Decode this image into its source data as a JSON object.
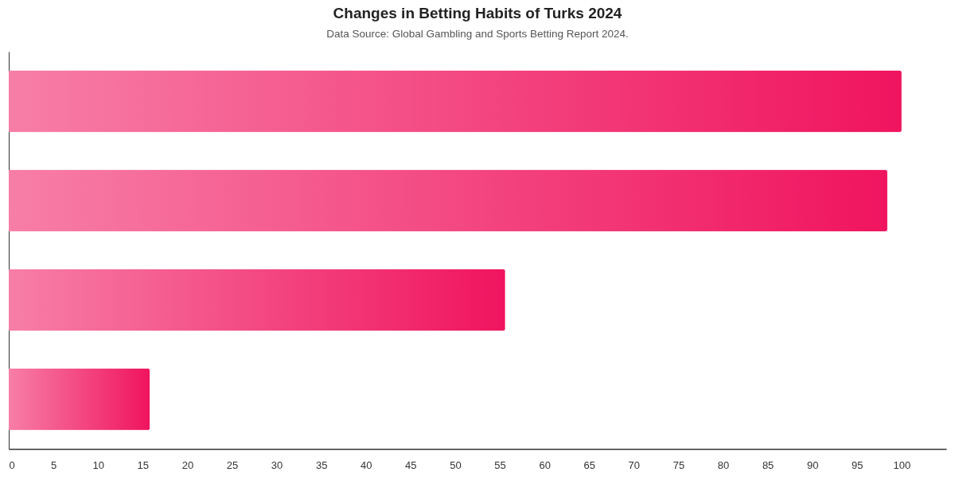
{
  "chart_data": {
    "type": "bar",
    "orientation": "horizontal",
    "title": "Changes in Betting Habits of Turks 2024",
    "subtitle": "Data Source: Global Gambling and Sports Betting Report 2024.",
    "categories": [
      null,
      null,
      null,
      null
    ],
    "values": [
      100,
      98.4,
      55.6,
      15.8
    ],
    "color": "#f0145f",
    "xlim": [
      0,
      105
    ],
    "xticks": [
      0,
      5,
      10,
      15,
      20,
      25,
      30,
      35,
      40,
      45,
      50,
      55,
      60,
      65,
      70,
      75,
      80,
      85,
      90,
      95,
      100
    ],
    "tick_labels": "x"
  }
}
